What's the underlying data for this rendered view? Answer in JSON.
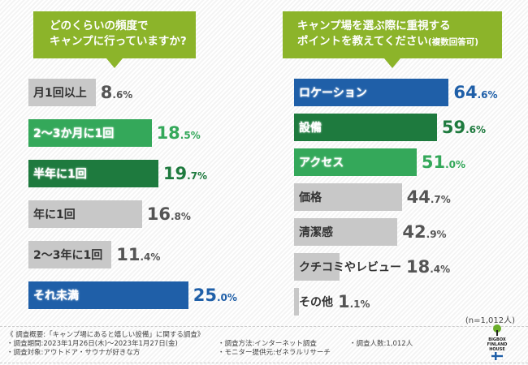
{
  "colors": {
    "title_bg": "#8cb42a",
    "gray": "#c8c8c8",
    "blue": "#1f5fa8",
    "dark_green": "#1e7a3e",
    "light_green": "#34a85a",
    "gray_text": "#555555"
  },
  "chart_data": [
    {
      "type": "bar",
      "orientation": "horizontal",
      "title": "どのくらいの頻度でキャンプに行っていますか?",
      "categories": [
        "月1回以上",
        "2〜3か月に1回",
        "半年に1回",
        "年に1回",
        "2〜3年に1回",
        "それ未満"
      ],
      "values": [
        8.6,
        18.5,
        19.7,
        16.8,
        11.4,
        25.0
      ],
      "labels": [
        "8.6%",
        "18.5%",
        "19.7%",
        "16.8%",
        "11.4%",
        "25.0%"
      ],
      "bar_colors": [
        "gray",
        "light_green",
        "dark_green",
        "gray",
        "gray",
        "blue"
      ]
    },
    {
      "type": "bar",
      "orientation": "horizontal",
      "title": "キャンプ場を選ぶ際に重視するポイントを教えてください",
      "title_note": "(複数回答可)",
      "categories": [
        "ロケーション",
        "設備",
        "アクセス",
        "価格",
        "清潔感",
        "クチコミやレビュー",
        "その他"
      ],
      "values": [
        64.6,
        59.6,
        51.0,
        44.7,
        42.9,
        18.4,
        1.1
      ],
      "labels": [
        "64.6%",
        "59.6%",
        "51.0%",
        "44.7%",
        "42.9%",
        "18.4%",
        "1.1%"
      ],
      "bar_colors": [
        "blue",
        "dark_green",
        "light_green",
        "gray",
        "gray",
        "gray",
        "gray"
      ]
    }
  ],
  "q1": {
    "line1": "どのくらいの頻度で",
    "line2": "キャンプに行っていますか?"
  },
  "q2": {
    "line1": "キャンプ場を選ぶ際に重視する",
    "line2": "ポイントを教えてください",
    "note": "(複数回答可)"
  },
  "sample": "(n=1,012人)",
  "footer": {
    "heading": "《 調査概要:「キャンプ場にあると嬉しい設備」に関する調査》",
    "period": "・調査期間:2023年1月26日(木)〜2023年1月27日(金)",
    "target": "・調査対象:アウトドア・サウナが好きな方",
    "method": "・調査方法:インターネット調査",
    "provider": "・モニター提供元:ゼネラルリサーチ",
    "count": "・調査人数:1,012人"
  },
  "logo": {
    "line1": "BIGBOX",
    "line2": "FINLAND HOUSE"
  }
}
